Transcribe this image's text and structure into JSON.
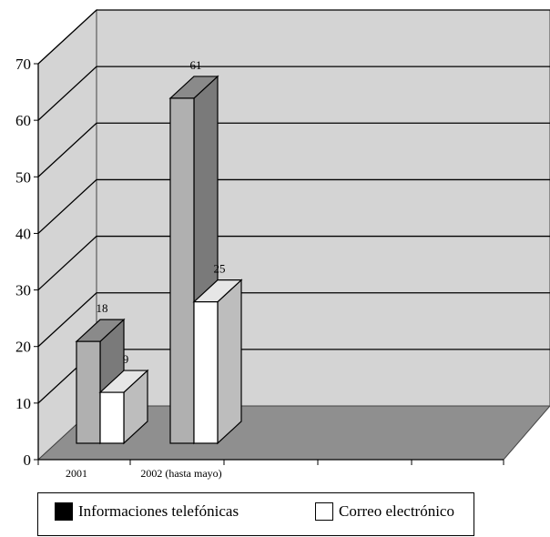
{
  "chart_data": {
    "type": "bar",
    "style": "3d-clustered",
    "categories": [
      "2001",
      "2002 (hasta mayo)"
    ],
    "series": [
      {
        "name": "Informaciones telefónicas",
        "values": [
          18,
          61
        ],
        "legend_color": "#000000",
        "front_color": "#b0b0b0",
        "side_color": "#7a7a7a",
        "top_color": "#8a8a8a"
      },
      {
        "name": "Correo electrónico",
        "values": [
          9,
          25
        ],
        "legend_color": "#ffffff",
        "front_color": "#ffffff",
        "side_color": "#bdbdbd",
        "top_color": "#e6e6e6"
      }
    ],
    "data_labels": [
      [
        "18",
        "61"
      ],
      [
        "9",
        "25"
      ]
    ],
    "ylim": [
      0,
      70
    ],
    "yticks": [
      "0",
      "10",
      "20",
      "30",
      "40",
      "50",
      "60",
      "70"
    ],
    "grid": true,
    "legend": "bottom",
    "colors": {
      "wall": "#d4d4d4",
      "floor": "#8f8f8f",
      "gridline": "#000000"
    }
  }
}
